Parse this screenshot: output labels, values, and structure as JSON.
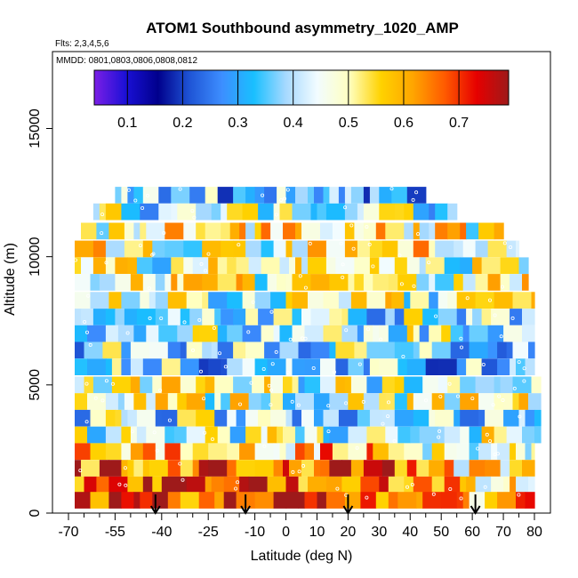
{
  "chart_data": {
    "type": "heatmap",
    "title": "ATOM1 Southbound asymmetry_1020_AMP",
    "flights_note": "Flts: 2,3,4,5,6",
    "dates_note": "MMDD: 0801,0803,0806,0808,0812",
    "xlabel": "Latitude (deg N)",
    "ylabel": "Altitude (m)",
    "xlim": [
      -70,
      80
    ],
    "ylim": [
      0,
      18000
    ],
    "x_ticks": [
      -70,
      -55,
      -40,
      -25,
      -10,
      0,
      10,
      20,
      30,
      40,
      50,
      60,
      70,
      80
    ],
    "y_ticks": [
      0,
      5000,
      10000,
      15000
    ],
    "colorbar": {
      "range": [
        0.04,
        0.79
      ],
      "ticks": [
        0.1,
        0.2,
        0.3,
        0.4,
        0.5,
        0.6,
        0.7
      ],
      "colors": [
        "#7b1fe6",
        "#1a10d6",
        "#00008c",
        "#1f55d6",
        "#3d8eff",
        "#19bfff",
        "#a6d9ff",
        "#f2fcff",
        "#ffffc0",
        "#ffd200",
        "#ffa500",
        "#ff5a00",
        "#e60000",
        "#9e1a1a"
      ]
    },
    "profile_latitudes": [
      -42,
      -13,
      20,
      61
    ],
    "altitude_bands": [
      {
        "alt": 12400,
        "west": -55,
        "east": 45,
        "base": 0.35
      },
      {
        "alt": 11750,
        "west": -62,
        "east": 55,
        "base": 0.42
      },
      {
        "alt": 11000,
        "west": -66,
        "east": 70,
        "base": 0.5
      },
      {
        "alt": 10300,
        "west": -68,
        "east": 75,
        "base": 0.5
      },
      {
        "alt": 9650,
        "west": -68,
        "east": 78,
        "base": 0.45
      },
      {
        "alt": 9000,
        "west": -68,
        "east": 78,
        "base": 0.48
      },
      {
        "alt": 8300,
        "west": -68,
        "east": 80,
        "base": 0.45
      },
      {
        "alt": 7650,
        "west": -68,
        "east": 80,
        "base": 0.4
      },
      {
        "alt": 7000,
        "west": -68,
        "east": 80,
        "base": 0.42
      },
      {
        "alt": 6350,
        "west": -68,
        "east": 80,
        "base": 0.38
      },
      {
        "alt": 5700,
        "west": -68,
        "east": 80,
        "base": 0.35
      },
      {
        "alt": 5000,
        "west": -68,
        "east": 82,
        "base": 0.45
      },
      {
        "alt": 4350,
        "west": -68,
        "east": 82,
        "base": 0.45
      },
      {
        "alt": 3700,
        "west": -68,
        "east": 82,
        "base": 0.4
      },
      {
        "alt": 3050,
        "west": -68,
        "east": 82,
        "base": 0.45
      },
      {
        "alt": 2400,
        "west": -68,
        "east": 80,
        "base": 0.5
      },
      {
        "alt": 1750,
        "west": -68,
        "east": 80,
        "base": 0.58
      },
      {
        "alt": 1100,
        "west": -68,
        "east": 80,
        "base": 0.62
      },
      {
        "alt": 500,
        "west": -68,
        "east": 80,
        "base": 0.64
      }
    ]
  }
}
